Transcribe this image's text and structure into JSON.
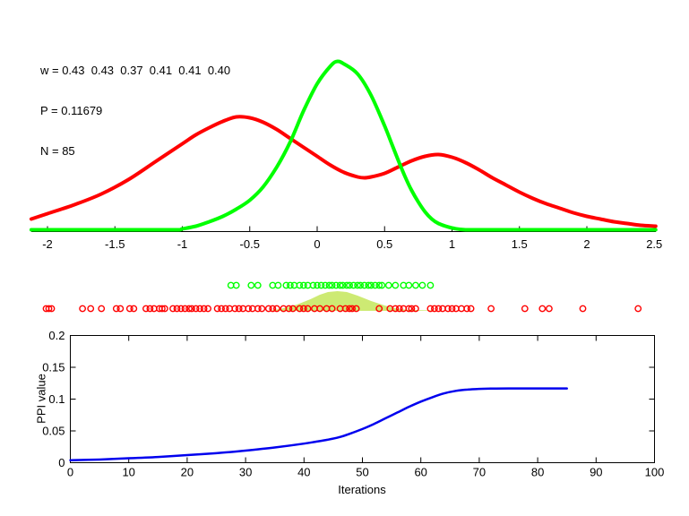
{
  "figure": {
    "background": "#ffffff",
    "annotation": {
      "w_line": "w = 0.43  0.43  0.37  0.41  0.41  0.40",
      "p_line": "P = 0.11679",
      "n_line": "N = 85"
    }
  },
  "colors": {
    "red_series": "#ff0000",
    "green_series": "#00ff00",
    "blue_series": "#0000ee",
    "overlap_fill": "#cdea73",
    "axis": "#000000",
    "text": "#000000"
  },
  "chart_data": [
    {
      "type": "line",
      "name": "density-comparison",
      "title": "",
      "xlabel": "",
      "ylabel": "",
      "xlim": [
        -2.12,
        2.51
      ],
      "ylim": [
        0,
        200
      ],
      "grid": false,
      "x_ticks": [
        -2,
        -1.5,
        -1,
        -0.5,
        0,
        0.5,
        1,
        1.5,
        2,
        2.5
      ],
      "x_tick_labels": [
        "-2",
        "-1.5",
        "-1",
        "-0.5",
        "0",
        "0.5",
        "1",
        "1.5",
        "2",
        "2.5"
      ],
      "series": [
        {
          "name": "red-density",
          "color": "#ff0000",
          "width": 4,
          "points": [
            [
              -2.12,
              14
            ],
            [
              -2.0,
              20
            ],
            [
              -1.8,
              30
            ],
            [
              -1.6,
              42
            ],
            [
              -1.4,
              58
            ],
            [
              -1.2,
              78
            ],
            [
              -1.0,
              98
            ],
            [
              -0.9,
              108
            ],
            [
              -0.8,
              116
            ],
            [
              -0.7,
              123
            ],
            [
              -0.6,
              128
            ],
            [
              -0.5,
              127
            ],
            [
              -0.4,
              122
            ],
            [
              -0.3,
              114
            ],
            [
              -0.2,
              104
            ],
            [
              -0.1,
              94
            ],
            [
              0.0,
              84
            ],
            [
              0.1,
              74
            ],
            [
              0.2,
              66
            ],
            [
              0.3,
              61
            ],
            [
              0.35,
              60
            ],
            [
              0.4,
              61
            ],
            [
              0.5,
              65
            ],
            [
              0.6,
              72
            ],
            [
              0.7,
              79
            ],
            [
              0.8,
              84
            ],
            [
              0.9,
              86
            ],
            [
              1.0,
              83
            ],
            [
              1.1,
              77
            ],
            [
              1.2,
              69
            ],
            [
              1.3,
              60
            ],
            [
              1.4,
              52
            ],
            [
              1.5,
              44
            ],
            [
              1.6,
              37
            ],
            [
              1.7,
              31
            ],
            [
              1.8,
              26
            ],
            [
              1.9,
              21
            ],
            [
              2.0,
              17
            ],
            [
              2.1,
              14
            ],
            [
              2.2,
              11
            ],
            [
              2.3,
              9
            ],
            [
              2.4,
              7
            ],
            [
              2.51,
              6
            ]
          ]
        },
        {
          "name": "green-density",
          "color": "#00ff00",
          "width": 4,
          "points": [
            [
              -2.12,
              2
            ],
            [
              -1.4,
              2
            ],
            [
              -1.05,
              2
            ],
            [
              -1.0,
              3
            ],
            [
              -0.9,
              6
            ],
            [
              -0.8,
              11
            ],
            [
              -0.7,
              17
            ],
            [
              -0.6,
              25
            ],
            [
              -0.5,
              35
            ],
            [
              -0.4,
              50
            ],
            [
              -0.3,
              72
            ],
            [
              -0.2,
              100
            ],
            [
              -0.1,
              135
            ],
            [
              0.0,
              165
            ],
            [
              0.1,
              185
            ],
            [
              0.15,
              190
            ],
            [
              0.2,
              187
            ],
            [
              0.3,
              176
            ],
            [
              0.4,
              152
            ],
            [
              0.5,
              118
            ],
            [
              0.55,
              99
            ],
            [
              0.6,
              80
            ],
            [
              0.65,
              62
            ],
            [
              0.7,
              46
            ],
            [
              0.75,
              33
            ],
            [
              0.8,
              22
            ],
            [
              0.85,
              14
            ],
            [
              0.9,
              9
            ],
            [
              1.0,
              4
            ],
            [
              1.1,
              2
            ],
            [
              1.2,
              2
            ],
            [
              1.8,
              2
            ],
            [
              2.51,
              2
            ]
          ]
        }
      ]
    },
    {
      "type": "scatter",
      "name": "sample-rug",
      "marker": "open-circle",
      "series": [
        {
          "name": "green-samples",
          "color": "#00ff00",
          "row": "top",
          "x": [
            -0.64,
            -0.6,
            -0.49,
            -0.44,
            -0.33,
            -0.29,
            -0.23,
            -0.2,
            -0.17,
            -0.13,
            -0.1,
            -0.07,
            -0.03,
            0.0,
            0.03,
            0.06,
            0.09,
            0.11,
            0.14,
            0.17,
            0.19,
            0.22,
            0.24,
            0.27,
            0.3,
            0.32,
            0.35,
            0.38,
            0.4,
            0.43,
            0.46,
            0.48,
            0.53,
            0.58,
            0.64,
            0.68,
            0.73,
            0.78,
            0.84
          ]
        },
        {
          "name": "red-samples",
          "color": "#ff0000",
          "row": "bottom",
          "x": [
            -2.01,
            -1.99,
            -1.97,
            -1.74,
            -1.68,
            -1.6,
            -1.49,
            -1.46,
            -1.39,
            -1.36,
            -1.27,
            -1.24,
            -1.21,
            -1.17,
            -1.15,
            -1.13,
            -1.07,
            -1.04,
            -1.01,
            -0.98,
            -0.95,
            -0.93,
            -0.9,
            -0.87,
            -0.84,
            -0.81,
            -0.74,
            -0.71,
            -0.68,
            -0.65,
            -0.61,
            -0.58,
            -0.55,
            -0.51,
            -0.48,
            -0.44,
            -0.41,
            -0.36,
            -0.33,
            -0.3,
            -0.25,
            -0.21,
            -0.18,
            -0.13,
            -0.1,
            -0.07,
            -0.02,
            0.02,
            0.07,
            0.11,
            0.17,
            0.21,
            0.24,
            0.26,
            0.29,
            0.46,
            0.54,
            0.58,
            0.61,
            0.64,
            0.68,
            0.7,
            0.73,
            0.84,
            0.87,
            0.9,
            0.93,
            0.97,
            1.0,
            1.03,
            1.07,
            1.11,
            1.14,
            1.29,
            1.54,
            1.67,
            1.72,
            1.97,
            2.38
          ]
        }
      ],
      "overlap_region": {
        "name": "overlap-density",
        "color": "#cdea73",
        "points": [
          [
            -0.35,
            0
          ],
          [
            -0.25,
            3
          ],
          [
            -0.15,
            7
          ],
          [
            -0.05,
            13
          ],
          [
            0.02,
            18
          ],
          [
            0.08,
            21
          ],
          [
            0.15,
            22
          ],
          [
            0.22,
            21
          ],
          [
            0.3,
            17
          ],
          [
            0.4,
            11
          ],
          [
            0.5,
            6
          ],
          [
            0.6,
            2
          ],
          [
            0.7,
            1
          ],
          [
            0.85,
            0.5
          ],
          [
            0.9,
            0
          ]
        ]
      }
    },
    {
      "type": "line",
      "name": "ppi-convergence",
      "title": "",
      "xlabel": "Iterations",
      "ylabel": "PPI value",
      "xlim": [
        0,
        100
      ],
      "ylim": [
        0,
        0.2
      ],
      "grid": false,
      "x_ticks": [
        0,
        10,
        20,
        30,
        40,
        50,
        60,
        70,
        80,
        90,
        100
      ],
      "x_tick_labels": [
        "0",
        "10",
        "20",
        "30",
        "40",
        "50",
        "60",
        "70",
        "80",
        "90",
        "100"
      ],
      "y_ticks": [
        0,
        0.05,
        0.1,
        0.15,
        0.2
      ],
      "y_tick_labels": [
        "0",
        "0.05",
        "0.1",
        "0.15",
        "0.2"
      ],
      "series": [
        {
          "name": "ppi-value",
          "color": "#0000ee",
          "width": 2.5,
          "x": [
            0,
            5,
            10,
            15,
            20,
            25,
            30,
            35,
            40,
            42,
            44,
            46,
            48,
            50,
            52,
            54,
            56,
            58,
            60,
            62,
            64,
            66,
            68,
            70,
            72,
            75,
            80,
            85
          ],
          "y": [
            0.004,
            0.005,
            0.007,
            0.009,
            0.012,
            0.015,
            0.019,
            0.024,
            0.03,
            0.033,
            0.036,
            0.04,
            0.046,
            0.053,
            0.061,
            0.07,
            0.079,
            0.088,
            0.096,
            0.103,
            0.109,
            0.113,
            0.115,
            0.116,
            0.1165,
            0.1168,
            0.1168,
            0.1168
          ]
        }
      ]
    }
  ]
}
